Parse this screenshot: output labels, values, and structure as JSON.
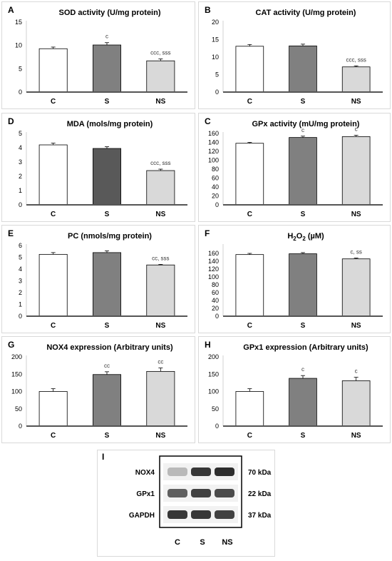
{
  "bar_colors": {
    "C": "#ffffff",
    "S": "#808080",
    "NS": "#d9d9d9",
    "S_dark": "#595959"
  },
  "chart_data": [
    {
      "id": "A",
      "type": "bar",
      "title": "SOD activity (U/mg protein)",
      "categories": [
        "C",
        "S",
        "NS"
      ],
      "values": [
        9.3,
        10.1,
        6.7
      ],
      "errors": [
        0.35,
        0.5,
        0.4
      ],
      "ylim": [
        0,
        15
      ],
      "yticks": [
        0,
        5,
        10,
        15
      ],
      "annotations": [
        "",
        "c",
        "ccc, sss"
      ]
    },
    {
      "id": "B",
      "type": "bar",
      "title": "CAT activity (U/mg protein)",
      "categories": [
        "C",
        "S",
        "NS"
      ],
      "values": [
        13.1,
        13.2,
        7.2
      ],
      "errors": [
        0.5,
        0.5,
        0.3
      ],
      "ylim": [
        0,
        20
      ],
      "yticks": [
        0,
        5,
        10,
        15,
        20
      ],
      "annotations": [
        "",
        "",
        "ccc, sss"
      ]
    },
    {
      "id": "D",
      "type": "bar",
      "title": "MDA (mols/mg protein)",
      "categories": [
        "C",
        "S",
        "NS"
      ],
      "values": [
        4.2,
        3.95,
        2.4
      ],
      "errors": [
        0.12,
        0.12,
        0.1
      ],
      "ylim": [
        0,
        5
      ],
      "yticks": [
        0,
        1,
        2,
        3,
        4,
        5
      ],
      "annotations": [
        "",
        "",
        "ccc, sss"
      ],
      "dark_s": true
    },
    {
      "id": "C",
      "type": "bar",
      "title": "GPx activity (mU/mg protein)",
      "categories": [
        "C",
        "S",
        "NS"
      ],
      "values": [
        138,
        151,
        153
      ],
      "errors": [
        2,
        3,
        3
      ],
      "ylim": [
        0,
        160
      ],
      "yticks": [
        0,
        20,
        40,
        60,
        80,
        100,
        120,
        140,
        160
      ],
      "annotations": [
        "",
        "c",
        "c"
      ]
    },
    {
      "id": "E",
      "type": "bar",
      "title": "PC (nmols/mg protein)",
      "categories": [
        "C",
        "S",
        "NS"
      ],
      "values": [
        5.25,
        5.4,
        4.35
      ],
      "errors": [
        0.15,
        0.15,
        0.05
      ],
      "ylim": [
        0,
        6
      ],
      "yticks": [
        0,
        1,
        2,
        3,
        4,
        5,
        6
      ],
      "annotations": [
        "",
        "",
        "cc, sss"
      ]
    },
    {
      "id": "F",
      "type": "bar",
      "title": "H2O2 (µM)",
      "title_parts": [
        "H",
        "2",
        "O",
        "2",
        " (µM)"
      ],
      "categories": [
        "C",
        "S",
        "NS"
      ],
      "values": [
        157,
        159,
        146
      ],
      "errors": [
        3,
        3,
        2
      ],
      "ylim": [
        0,
        180
      ],
      "yticks": [
        0,
        20,
        40,
        60,
        80,
        100,
        120,
        140,
        160
      ],
      "annotations": [
        "",
        "",
        "c, ss"
      ]
    },
    {
      "id": "G",
      "type": "bar",
      "title": "NOX4 expression (Arbitrary units)",
      "categories": [
        "C",
        "S",
        "NS"
      ],
      "values": [
        100,
        149,
        158
      ],
      "errors": [
        8,
        8,
        10
      ],
      "ylim": [
        0,
        200
      ],
      "yticks": [
        0,
        50,
        100,
        150,
        200
      ],
      "annotations": [
        "",
        "cc",
        "cc"
      ]
    },
    {
      "id": "H",
      "type": "bar",
      "title": "GPx1 expression (Arbitrary units)",
      "categories": [
        "C",
        "S",
        "NS"
      ],
      "values": [
        100,
        138,
        131
      ],
      "errors": [
        8,
        8,
        10
      ],
      "ylim": [
        0,
        200
      ],
      "yticks": [
        0,
        50,
        100,
        150,
        200
      ],
      "annotations": [
        "",
        "c",
        "c"
      ]
    }
  ],
  "blot": {
    "label": "I",
    "rows": [
      {
        "name": "NOX4",
        "kda": "70 kDa",
        "intensity": [
          0.25,
          0.9,
          0.95
        ]
      },
      {
        "name": "GPx1",
        "kda": "22 kDa",
        "intensity": [
          0.7,
          0.85,
          0.8
        ]
      },
      {
        "name": "GAPDH",
        "kda": "37 kDa",
        "intensity": [
          0.9,
          0.9,
          0.85
        ]
      }
    ],
    "lanes": [
      "C",
      "S",
      "NS"
    ]
  }
}
